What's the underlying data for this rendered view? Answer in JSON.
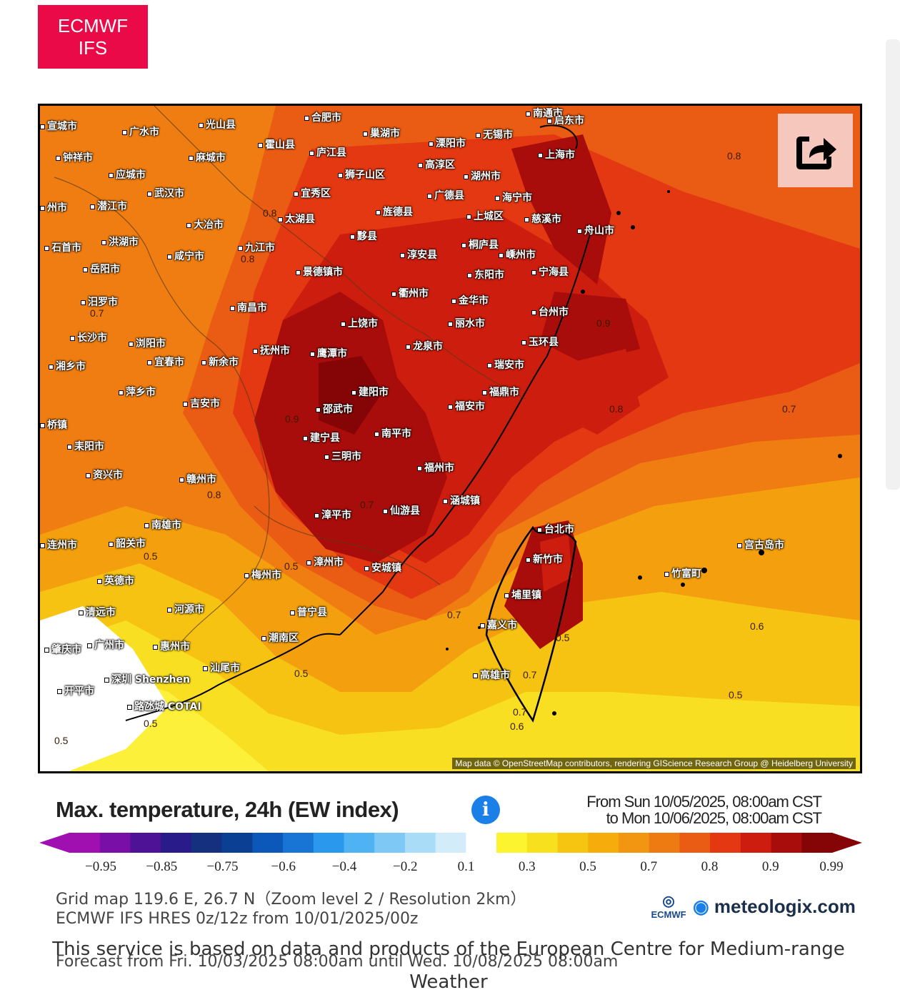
{
  "badge": {
    "line1": "ECMWF",
    "line2": "IFS"
  },
  "map": {
    "attribution": "Map data © OpenStreetMap contributors, rendering GIScience Research Group @ Heidelberg University",
    "cities": [
      {
        "name": "宣城市"
      },
      {
        "name": "合肥市"
      },
      {
        "name": "巢湖市"
      },
      {
        "name": "南通市"
      },
      {
        "name": "启东市"
      },
      {
        "name": "光山县"
      },
      {
        "name": "广水市"
      },
      {
        "name": "霍山县"
      },
      {
        "name": "庐江县"
      },
      {
        "name": "溧阳市"
      },
      {
        "name": "无锡市"
      },
      {
        "name": "钟祥市"
      },
      {
        "name": "麻城市"
      },
      {
        "name": "高淳区"
      },
      {
        "name": "上海市"
      },
      {
        "name": "应城市"
      },
      {
        "name": "狮子山区"
      },
      {
        "name": "湖州市"
      },
      {
        "name": "武汉市"
      },
      {
        "name": "宜秀区"
      },
      {
        "name": "广德县"
      },
      {
        "name": "海宁市"
      },
      {
        "name": "州市"
      },
      {
        "name": "潜江市"
      },
      {
        "name": "大冶市"
      },
      {
        "name": "旌德县"
      },
      {
        "name": "太湖县"
      },
      {
        "name": "上城区"
      },
      {
        "name": "慈溪市"
      },
      {
        "name": "石首市"
      },
      {
        "name": "洪湖市"
      },
      {
        "name": "黟县"
      },
      {
        "name": "舟山市"
      },
      {
        "name": "九江市"
      },
      {
        "name": "桐庐县"
      },
      {
        "name": "咸宁市"
      },
      {
        "name": "淳安县"
      },
      {
        "name": "嵊州市"
      },
      {
        "name": "岳阳市"
      },
      {
        "name": "景德镇市"
      },
      {
        "name": "东阳市"
      },
      {
        "name": "宁海县"
      },
      {
        "name": "衢州市"
      },
      {
        "name": "汨罗市"
      },
      {
        "name": "金华市"
      },
      {
        "name": "南昌市"
      },
      {
        "name": "台州市"
      },
      {
        "name": "上饶市"
      },
      {
        "name": "丽水市"
      },
      {
        "name": "长沙市"
      },
      {
        "name": "浏阳市"
      },
      {
        "name": "玉环县"
      },
      {
        "name": "抚州市"
      },
      {
        "name": "鹰潭市"
      },
      {
        "name": "龙泉市"
      },
      {
        "name": "湘乡市"
      },
      {
        "name": "宜春市"
      },
      {
        "name": "新余市"
      },
      {
        "name": "瑞安市"
      },
      {
        "name": "建阳市"
      },
      {
        "name": "福鼎市"
      },
      {
        "name": "萍乡市"
      },
      {
        "name": "吉安市"
      },
      {
        "name": "邵武市"
      },
      {
        "name": "福安市"
      },
      {
        "name": "桥镇"
      },
      {
        "name": "南平市"
      },
      {
        "name": "耒阳市"
      },
      {
        "name": "建宁县"
      },
      {
        "name": "三明市"
      },
      {
        "name": "资兴市"
      },
      {
        "name": "福州市"
      },
      {
        "name": "赣州市"
      },
      {
        "name": "漳平市"
      },
      {
        "name": "仙游县"
      },
      {
        "name": "涵城镇"
      },
      {
        "name": "南雄市"
      },
      {
        "name": "台北市"
      },
      {
        "name": "连州市"
      },
      {
        "name": "韶关市"
      },
      {
        "name": "新竹市"
      },
      {
        "name": "漳州市"
      },
      {
        "name": "宫古岛市"
      },
      {
        "name": "英德市"
      },
      {
        "name": "梅州市"
      },
      {
        "name": "安城镇"
      },
      {
        "name": "竹富町"
      },
      {
        "name": "埔里镇"
      },
      {
        "name": "清远市"
      },
      {
        "name": "河源市"
      },
      {
        "name": "普宁县"
      },
      {
        "name": "嘉义市"
      },
      {
        "name": "肇庆市"
      },
      {
        "name": "广州市"
      },
      {
        "name": "惠州市"
      },
      {
        "name": "潮南区"
      },
      {
        "name": "汕尾市"
      },
      {
        "name": "高雄市"
      },
      {
        "name": "深圳 Shenzhen"
      },
      {
        "name": "开平市"
      },
      {
        "name": "路氹城 COTAI"
      }
    ],
    "contour_labels": [
      "0.8",
      "0.8",
      "0.8",
      "0.7",
      "0.8",
      "0.9",
      "0.9",
      "0.7",
      "0.8",
      "0.7",
      "0.5",
      "0.5",
      "0.5",
      "0.7",
      "0.7",
      "0.5",
      "0.6",
      "0.7",
      "0.5",
      "0.5",
      "0.5",
      "0.6"
    ]
  },
  "legend": {
    "title": "Max. temperature, 24h (EW index)",
    "from": "From Sun 10/05/2025, 08:00am CST",
    "to": "to Mon 10/06/2025, 08:00am CST",
    "ticks": [
      "−0.95",
      "−0.85",
      "−0.75",
      "−0.6",
      "−0.4",
      "−0.2",
      "0.1",
      "0.3",
      "0.5",
      "0.7",
      "0.8",
      "0.9",
      "0.99"
    ],
    "colors": [
      "#a010b0",
      "#7a0fa8",
      "#4e1296",
      "#2a1b8a",
      "#15307f",
      "#0b3f93",
      "#0c58b8",
      "#1875d6",
      "#2a98ec",
      "#4fb2f2",
      "#7ec8f5",
      "#a8dcf7",
      "#d2ecfa",
      "#ffffff",
      "#fcf42f",
      "#f7e01e",
      "#f5c512",
      "#f6ad0c",
      "#f29510",
      "#ee7a12",
      "#ea5b13",
      "#e33812",
      "#cc1d0e",
      "#a80d0b",
      "#850507"
    ]
  },
  "footer": {
    "grid": "Grid map 119.6 E, 26.7 N（Zoom level 2 / Resolution 2km）",
    "model": "ECMWF IFS HRES 0z/12z from 10/01/2025/00z",
    "forecast": "Forecast from Fri. 10/03/2025 08:00am until Wed. 10/08/2025 08:00am",
    "service": "This service is based on data and products of the European Centre for Medium-range Weather",
    "ecmwf_logo": "ECMWF",
    "brand": "meteologix.com"
  },
  "icons": {
    "share": "share-icon",
    "info": "info-icon"
  }
}
